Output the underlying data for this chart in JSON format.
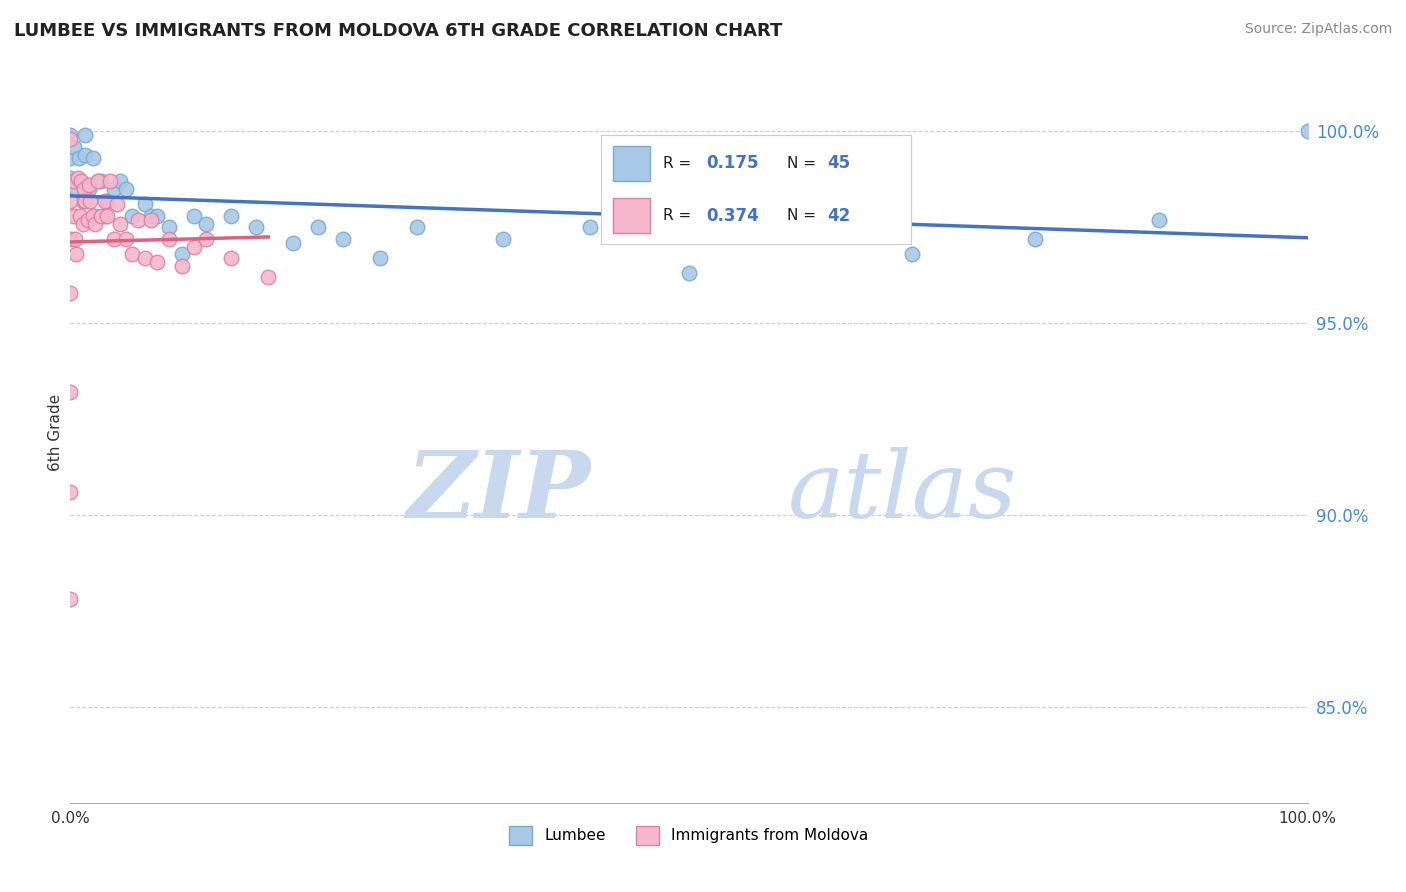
{
  "title": "LUMBEE VS IMMIGRANTS FROM MOLDOVA 6TH GRADE CORRELATION CHART",
  "source_text": "Source: ZipAtlas.com",
  "ylabel": "6th Grade",
  "xlim": [
    0.0,
    1.0
  ],
  "ylim": [
    0.825,
    1.018
  ],
  "yticks": [
    0.85,
    0.9,
    0.95,
    1.0
  ],
  "ytick_labels": [
    "85.0%",
    "90.0%",
    "95.0%",
    "100.0%"
  ],
  "gridline_color": "#cccccc",
  "gridline_style": "--",
  "background_color": "#ffffff",
  "lumbee_color": "#a8c8e8",
  "lumbee_edge_color": "#7aaad0",
  "moldova_color": "#f5b8cc",
  "moldova_edge_color": "#e080a0",
  "lumbee_R": 0.175,
  "lumbee_N": 45,
  "moldova_R": 0.374,
  "moldova_N": 42,
  "legend_label_1": "Lumbee",
  "legend_label_2": "Immigrants from Moldova",
  "lumbee_scatter_x": [
    0.0,
    0.0,
    0.0,
    0.003,
    0.005,
    0.007,
    0.008,
    0.01,
    0.012,
    0.012,
    0.015,
    0.018,
    0.02,
    0.022,
    0.025,
    0.028,
    0.03,
    0.035,
    0.04,
    0.045,
    0.05,
    0.06,
    0.065,
    0.07,
    0.08,
    0.09,
    0.1,
    0.11,
    0.13,
    0.15,
    0.18,
    0.2,
    0.22,
    0.25,
    0.28,
    0.35,
    0.42,
    0.5,
    0.52,
    0.58,
    0.62,
    0.68,
    0.78,
    0.88,
    1.0
  ],
  "lumbee_scatter_y": [
    0.988,
    0.993,
    0.999,
    0.996,
    0.985,
    0.993,
    0.987,
    0.982,
    0.994,
    0.999,
    0.985,
    0.993,
    0.978,
    0.987,
    0.987,
    0.978,
    0.982,
    0.985,
    0.987,
    0.985,
    0.978,
    0.981,
    0.978,
    0.978,
    0.975,
    0.968,
    0.978,
    0.976,
    0.978,
    0.975,
    0.971,
    0.975,
    0.972,
    0.967,
    0.975,
    0.972,
    0.975,
    0.963,
    0.977,
    0.981,
    0.977,
    0.968,
    0.972,
    0.977,
    1.0
  ],
  "moldova_scatter_x": [
    0.0,
    0.0,
    0.0,
    0.0,
    0.0,
    0.0,
    0.0,
    0.002,
    0.003,
    0.004,
    0.005,
    0.006,
    0.008,
    0.009,
    0.01,
    0.011,
    0.012,
    0.014,
    0.015,
    0.016,
    0.018,
    0.02,
    0.022,
    0.025,
    0.028,
    0.03,
    0.032,
    0.035,
    0.038,
    0.04,
    0.045,
    0.05,
    0.055,
    0.06,
    0.065,
    0.07,
    0.08,
    0.09,
    0.1,
    0.11,
    0.13,
    0.16
  ],
  "moldova_scatter_y": [
    0.878,
    0.906,
    0.932,
    0.958,
    0.972,
    0.982,
    0.998,
    0.987,
    0.978,
    0.972,
    0.968,
    0.988,
    0.978,
    0.987,
    0.976,
    0.985,
    0.982,
    0.977,
    0.986,
    0.982,
    0.978,
    0.976,
    0.987,
    0.978,
    0.982,
    0.978,
    0.987,
    0.972,
    0.981,
    0.976,
    0.972,
    0.968,
    0.977,
    0.967,
    0.977,
    0.966,
    0.972,
    0.965,
    0.97,
    0.972,
    0.967,
    0.962
  ],
  "watermark_zip": "ZIP",
  "watermark_atlas": "atlas",
  "watermark_color_zip": "#c8d8ee",
  "watermark_color_atlas": "#c8d8ee",
  "marker_size": 110,
  "trendline_lumbee_color": "#4472c4",
  "trendline_moldova_color": "#e06080",
  "legend_value_color": "#4472c4",
  "legend_text_color": "#222222"
}
